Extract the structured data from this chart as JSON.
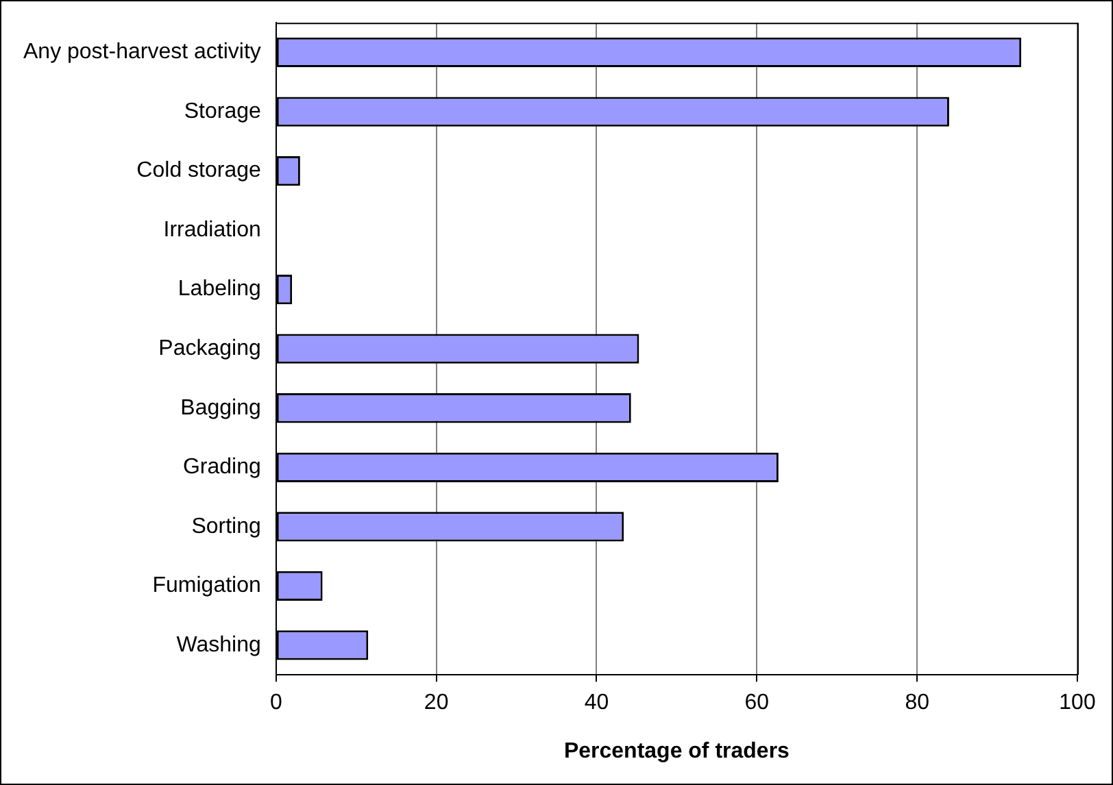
{
  "chart_data": {
    "type": "bar",
    "orientation": "horizontal",
    "xlabel": "Percentage of traders",
    "categories": [
      "Any post-harvest activity",
      "Storage",
      "Cold storage",
      "Irradiation",
      "Labeling",
      "Packaging",
      "Bagging",
      "Grading",
      "Sorting",
      "Fumigation",
      "Washing"
    ],
    "values": [
      93,
      84,
      3,
      0,
      2,
      45.3,
      44.3,
      62.7,
      43.4,
      5.8,
      11.5
    ],
    "color": "#9999ff",
    "xlim": [
      0,
      100
    ],
    "xticks": [
      0,
      20,
      40,
      60,
      80,
      100
    ],
    "grid": "x",
    "legend": false
  }
}
